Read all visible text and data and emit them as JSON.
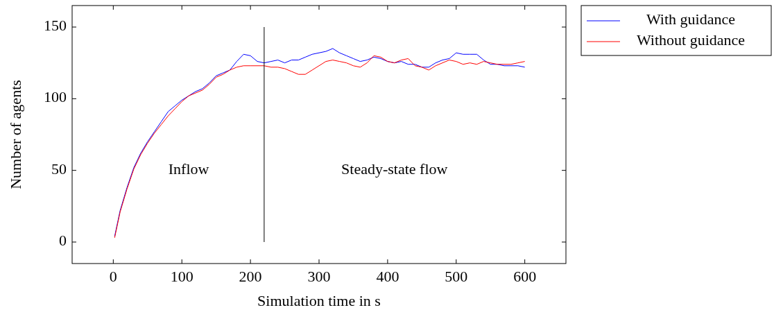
{
  "chart_data": {
    "type": "line",
    "xlabel": "Simulation time in s",
    "ylabel": "Number of agents",
    "xlim": [
      -60,
      660
    ],
    "ylim": [
      -15,
      165
    ],
    "xticks": [
      0,
      100,
      200,
      300,
      400,
      500,
      600
    ],
    "yticks": [
      0,
      50,
      100,
      150
    ],
    "x": [
      2,
      10,
      20,
      30,
      40,
      50,
      60,
      70,
      80,
      90,
      100,
      110,
      120,
      130,
      140,
      150,
      160,
      170,
      180,
      190,
      200,
      210,
      220,
      230,
      240,
      250,
      260,
      270,
      280,
      290,
      300,
      310,
      320,
      330,
      340,
      350,
      360,
      370,
      380,
      390,
      400,
      410,
      420,
      430,
      440,
      450,
      460,
      470,
      480,
      490,
      500,
      510,
      520,
      530,
      540,
      550,
      560,
      570,
      580,
      590,
      600
    ],
    "series": [
      {
        "name": "With guidance",
        "color": "#0000ff",
        "values": [
          4,
          22,
          38,
          52,
          62,
          70,
          77,
          84,
          91,
          95,
          99,
          102,
          105,
          107,
          111,
          116,
          118,
          120,
          126,
          131,
          130,
          126,
          125,
          126,
          127,
          125,
          127,
          127,
          129,
          131,
          132,
          133,
          135,
          132,
          130,
          128,
          126,
          127,
          129,
          128,
          126,
          125,
          126,
          124,
          124,
          122,
          122,
          125,
          127,
          128,
          132,
          131,
          131,
          131,
          127,
          124,
          124,
          123,
          123,
          123,
          122
        ]
      },
      {
        "name": "Without guidance",
        "color": "#ff0000",
        "values": [
          3,
          21,
          37,
          51,
          61,
          69,
          76,
          82,
          88,
          93,
          98,
          102,
          104,
          106,
          110,
          115,
          117,
          120,
          122,
          123,
          123,
          123,
          123,
          122,
          122,
          121,
          119,
          117,
          117,
          120,
          123,
          126,
          127,
          126,
          125,
          123,
          122,
          125,
          130,
          129,
          126,
          125,
          127,
          128,
          123,
          122,
          120,
          123,
          125,
          127,
          126,
          124,
          125,
          124,
          126,
          125,
          124,
          124,
          124,
          125,
          126
        ]
      }
    ],
    "ref_lines": [
      {
        "axis": "x",
        "value": 220,
        "color": "#000000"
      }
    ],
    "annotations": [
      "Inflow",
      "Steady-state flow"
    ],
    "legend": "top right",
    "grid": false
  }
}
